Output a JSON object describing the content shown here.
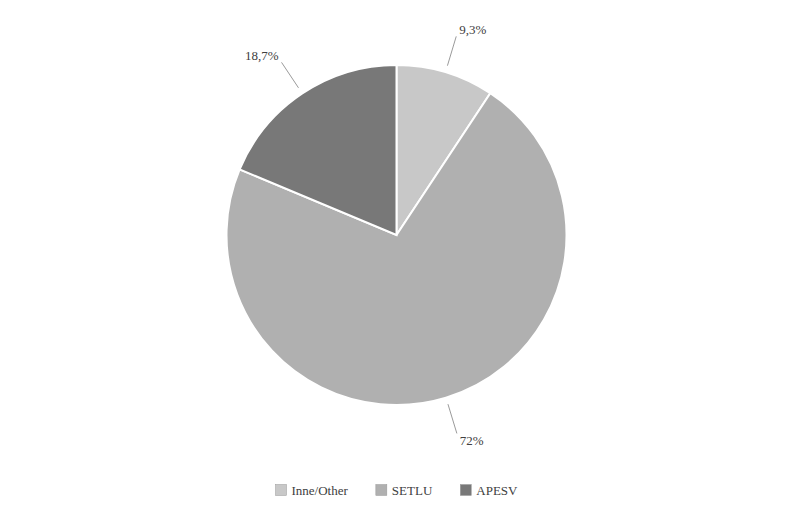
{
  "chart_data": {
    "type": "pie",
    "categories": [
      "Inne/Other",
      "SETLU",
      "APESV"
    ],
    "values": [
      9.3,
      72.0,
      18.7
    ],
    "value_labels": [
      "9,3%",
      "72%",
      "18,7%"
    ],
    "colors": [
      "#c8c8c8",
      "#b0b0b0",
      "#787878"
    ],
    "data_labels": true,
    "legend": "bottom"
  }
}
